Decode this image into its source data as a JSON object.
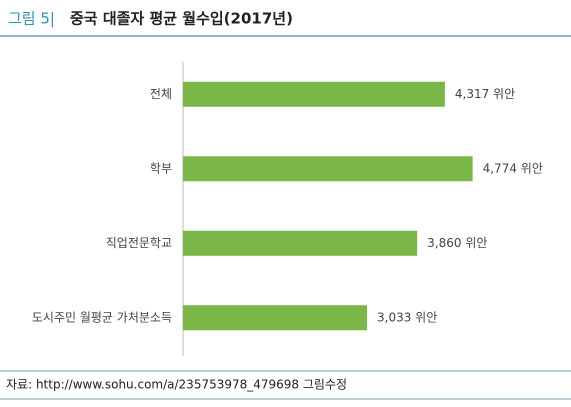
{
  "chart_data": {
    "type": "bar",
    "orientation": "horizontal",
    "figure_label": "그림 5|",
    "title": "중국 대졸자 평균 월수입(2017년)",
    "source": "자료: http://www.sohu.com/a/235753978_479698 그림수정",
    "categories": [
      "전체",
      "학부",
      "직업전문학교",
      "도시주민 월평균 가처분소득"
    ],
    "values": [
      4317,
      4774,
      3860,
      3033
    ],
    "value_labels": [
      "4,317 위안",
      "4,774 위안",
      "3,860 위안",
      "3,033 위안"
    ],
    "color": "#7ab648",
    "xlim": [
      0,
      6000
    ]
  }
}
